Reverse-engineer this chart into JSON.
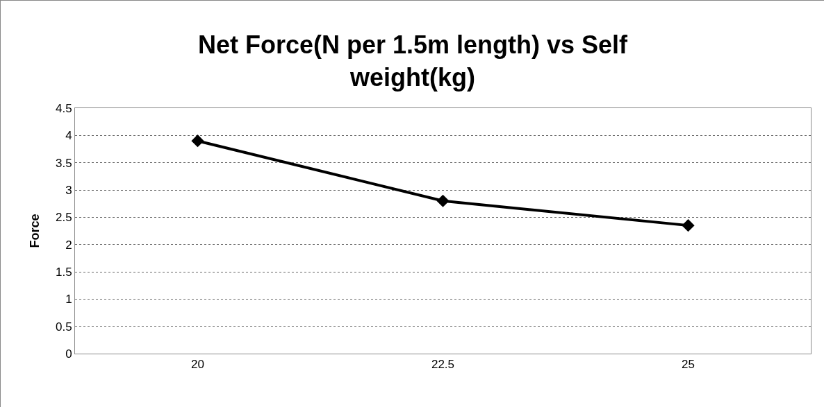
{
  "chart_data": {
    "type": "line",
    "title": "Net Force(N per 1.5m length) vs Self weight(kg)",
    "ylabel": "Force",
    "categories": [
      "20",
      "22.5",
      "25"
    ],
    "series": [
      {
        "color": "#000000",
        "values": [
          3.9,
          2.8,
          2.35
        ]
      }
    ],
    "ylim": [
      0,
      4.5
    ],
    "yticks": [
      0,
      0.5,
      1,
      1.5,
      2,
      2.5,
      3,
      3.5,
      4,
      4.5
    ],
    "grid": "y",
    "marker": "diamond",
    "line_style": "solid"
  }
}
